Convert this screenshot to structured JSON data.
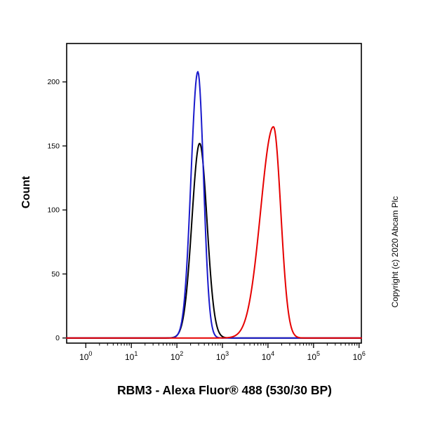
{
  "figure": {
    "title": "RBM3 - Alexa Fluor® 488 (530/30 BP)",
    "ylabel": "Count",
    "copyright": "Copyright (c) 2020 Abcam Plc"
  },
  "chart_data": {
    "type": "line",
    "subtype": "flow-cytometry-histogram",
    "title": "RBM3 - Alexa Fluor® 488 (530/30 BP)",
    "xlabel": "RBM3 - Alexa Fluor® 488 (530/30 BP)",
    "ylabel": "Count",
    "x_scale": "log10",
    "xlim_log10": [
      -0.42,
      6.05
    ],
    "x_tick_exponents": [
      0,
      1,
      2,
      3,
      4,
      5,
      6
    ],
    "y_ticks": [
      0,
      50,
      100,
      150,
      200
    ],
    "ylim": [
      -4,
      230
    ],
    "grid": false,
    "legend": "none",
    "series": [
      {
        "name": "black-curve",
        "color": "#000000",
        "peak_log10_x": 2.5,
        "peak_x": 316,
        "peak_count": 152,
        "sigma_left_log10": 0.17,
        "sigma_right_log10": 0.16
      },
      {
        "name": "blue-curve",
        "color": "#1a1acc",
        "peak_log10_x": 2.46,
        "peak_x": 288,
        "peak_count": 208,
        "sigma_left_log10": 0.15,
        "sigma_right_log10": 0.125
      },
      {
        "name": "red-curve",
        "color": "#e60000",
        "peak_log10_x": 4.12,
        "peak_x": 13200,
        "peak_count": 165,
        "sigma_left_log10": 0.28,
        "sigma_right_log10": 0.16
      }
    ]
  }
}
